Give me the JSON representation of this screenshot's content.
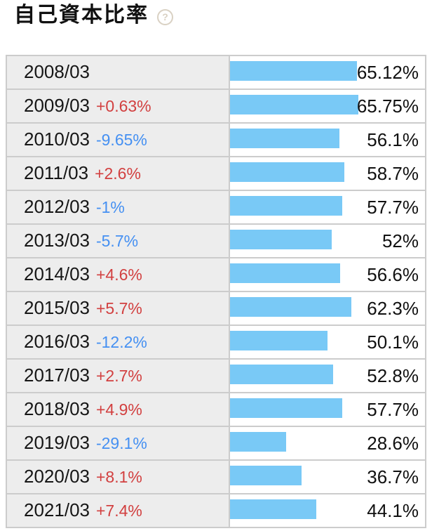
{
  "page": {
    "title": "自己資本比率",
    "help_icon": "?"
  },
  "colors": {
    "bar": "#79c9f6",
    "delta_positive": "#d24040",
    "delta_negative": "#4590f2",
    "label_bg": "#ededed",
    "border": "#cccccc",
    "help_icon": "#d9d1c3",
    "text": "#111111"
  },
  "chart_data": {
    "type": "bar",
    "orientation": "horizontal",
    "title": "自己資本比率",
    "unit": "%",
    "xlim": [
      0,
      100
    ],
    "grid": false,
    "legend": false,
    "categories": [
      "2008/03",
      "2009/03",
      "2010/03",
      "2011/03",
      "2012/03",
      "2013/03",
      "2014/03",
      "2015/03",
      "2016/03",
      "2017/03",
      "2018/03",
      "2019/03",
      "2020/03",
      "2021/03"
    ],
    "values": [
      65.12,
      65.75,
      56.1,
      58.7,
      57.7,
      52,
      56.6,
      62.3,
      50.1,
      52.8,
      57.7,
      28.6,
      36.7,
      44.1
    ],
    "value_labels": [
      "65.12%",
      "65.75%",
      "56.1%",
      "58.7%",
      "57.7%",
      "52%",
      "56.6%",
      "62.3%",
      "50.1%",
      "52.8%",
      "57.7%",
      "28.6%",
      "36.7%",
      "44.1%"
    ],
    "delta_labels": [
      "",
      "+0.63%",
      "-9.65%",
      "+2.6%",
      "-1%",
      "-5.7%",
      "+4.6%",
      "+5.7%",
      "-12.2%",
      "+2.7%",
      "+4.9%",
      "-29.1%",
      "+8.1%",
      "+7.4%"
    ]
  }
}
